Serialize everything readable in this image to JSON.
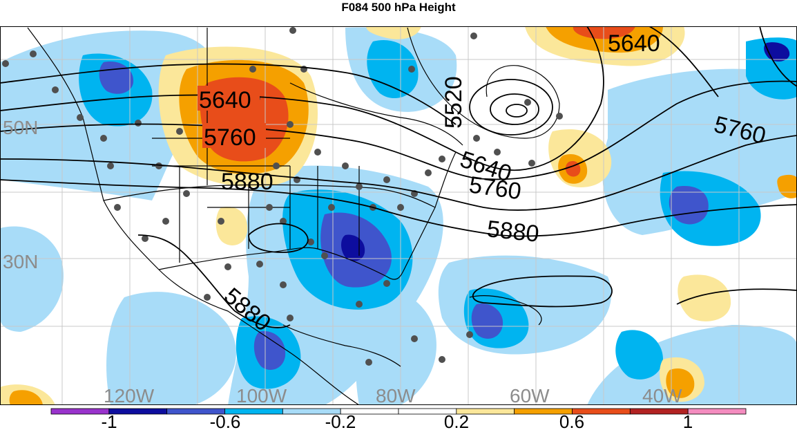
{
  "title": "F084 500 hPa Height",
  "map": {
    "latitude_labels": [
      "50N",
      "30N"
    ],
    "longitude_labels": [
      "120W",
      "100W",
      "80W",
      "60W",
      "40W"
    ],
    "contour_labels": [
      "5640",
      "5760",
      "5880",
      "5520",
      "5640",
      "5760",
      "5880",
      "5640",
      "5760",
      "5880"
    ]
  },
  "colorbar": {
    "colors": [
      "#9933cc",
      "#0d0d9e",
      "#3f55cc",
      "#00b4f0",
      "#a8dcf8",
      "#ffffff",
      "#ffffff",
      "#fbe79a",
      "#f5a000",
      "#e84d1a",
      "#b22222",
      "#f48cbf"
    ],
    "labels": [
      "-1",
      "-0.6",
      "-0.2",
      "0.2",
      "0.6",
      "1"
    ]
  }
}
